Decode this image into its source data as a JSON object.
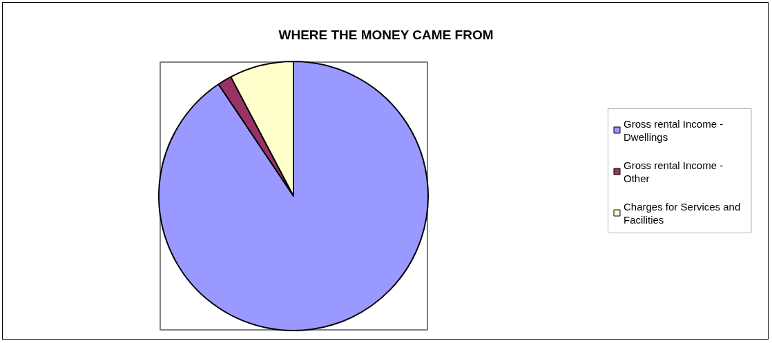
{
  "chart_data": {
    "type": "pie",
    "title": "WHERE THE MONEY CAME FROM",
    "categories": [
      "Gross rental Income - Dwellings",
      "Gross rental Income - Other",
      "Charges for Services and Facilities"
    ],
    "values": [
      90.6,
      1.7,
      7.7
    ],
    "colors": [
      "#9999ff",
      "#993366",
      "#ffffcc"
    ],
    "legend": "right"
  }
}
